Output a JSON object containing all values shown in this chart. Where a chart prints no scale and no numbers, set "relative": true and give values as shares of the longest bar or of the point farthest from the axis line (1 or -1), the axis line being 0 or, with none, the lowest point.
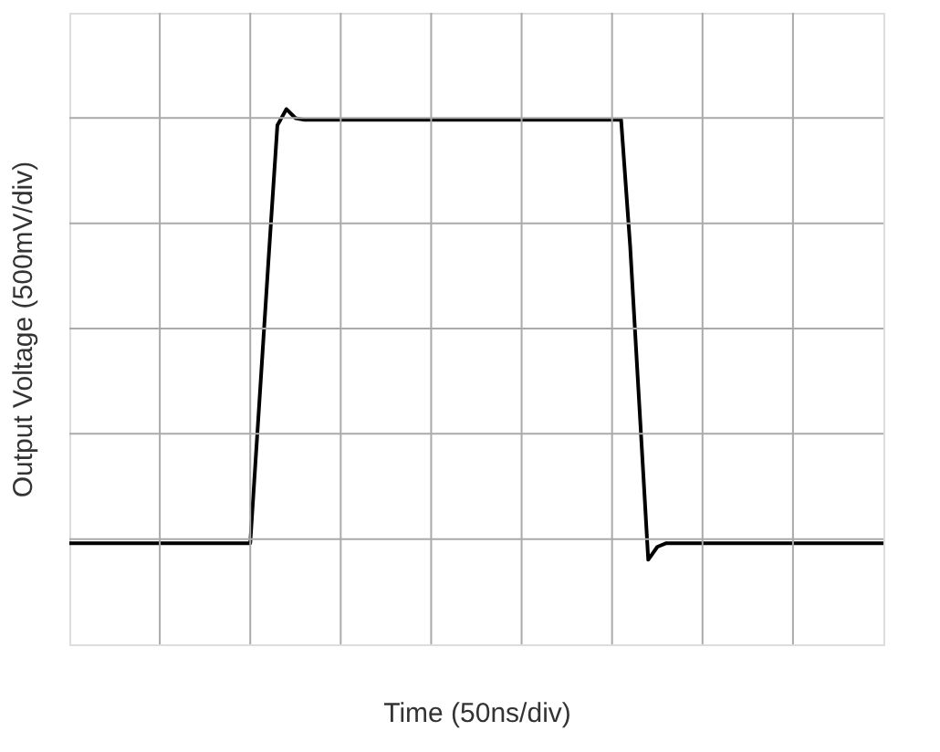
{
  "chart_data": {
    "type": "line",
    "xlabel": "Time (50ns/div)",
    "ylabel": "Output Voltage (500mV/div)",
    "relative": true,
    "grid": true,
    "categories": [
      null,
      null,
      null,
      null,
      null,
      null,
      null,
      null,
      null,
      null,
      null,
      null,
      null,
      null,
      null,
      null,
      null,
      null,
      null,
      null,
      null,
      null,
      null,
      null,
      null,
      null,
      null,
      null,
      null,
      null,
      null,
      null,
      null,
      null,
      null,
      null,
      null,
      null,
      null,
      null,
      null,
      null,
      null,
      null,
      null,
      null,
      null,
      null,
      null,
      null,
      null,
      null,
      null,
      null,
      null,
      null,
      null,
      null,
      null,
      null,
      null,
      null,
      null,
      null,
      null,
      null,
      null,
      null,
      null,
      null,
      null,
      null,
      null,
      null,
      null,
      null,
      null,
      null,
      null,
      null,
      null,
      null,
      null,
      null,
      null,
      null,
      null,
      null,
      null,
      null,
      null
    ],
    "series": [
      {
        "color": "#000000",
        "values": [
          0.189,
          0.189,
          0.189,
          0.189,
          0.189,
          0.189,
          0.189,
          0.189,
          0.189,
          0.189,
          0.189,
          0.189,
          0.189,
          0.189,
          0.189,
          0.189,
          0.189,
          0.189,
          0.189,
          0.189,
          0.189,
          0.451,
          0.714,
          0.97,
          1,
          0.983,
          0.98,
          0.98,
          0.98,
          0.98,
          0.98,
          0.98,
          0.98,
          0.98,
          0.98,
          0.98,
          0.98,
          0.98,
          0.98,
          0.98,
          0.98,
          0.98,
          0.98,
          0.98,
          0.98,
          0.98,
          0.98,
          0.98,
          0.98,
          0.98,
          0.98,
          0.98,
          0.98,
          0.98,
          0.98,
          0.98,
          0.98,
          0.98,
          0.98,
          0.98,
          0.98,
          0.98,
          0.744,
          0.451,
          0.158,
          0.182,
          0.189,
          0.189,
          0.189,
          0.189,
          0.189,
          0.189,
          0.189,
          0.189,
          0.189,
          0.189,
          0.189,
          0.189,
          0.189,
          0.189,
          0.189,
          0.189,
          0.189,
          0.189,
          0.189,
          0.189,
          0.189,
          0.189,
          0.189,
          0.189,
          0.189
        ]
      }
    ]
  }
}
